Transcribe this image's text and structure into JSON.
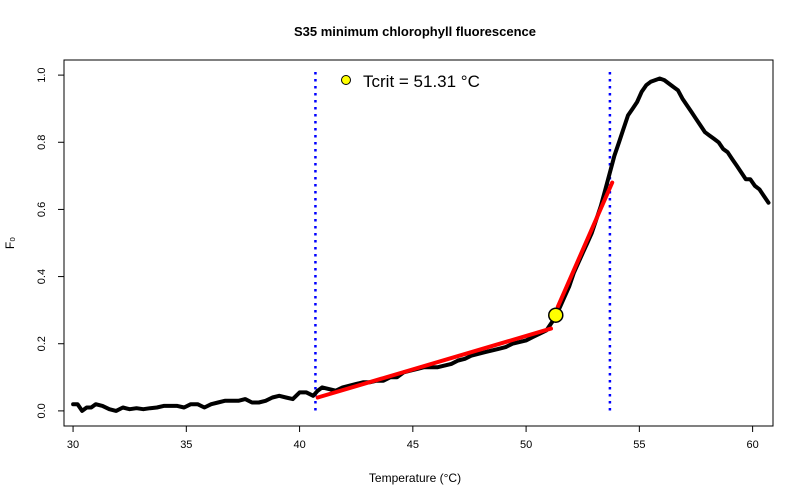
{
  "chart_data": {
    "type": "line",
    "title": "S35 minimum chlorophyll fluorescence",
    "xlabel": "Temperature (°C)",
    "ylabel": "F₀",
    "xlim": [
      29.6,
      60.9
    ],
    "ylim": [
      -0.045,
      1.045
    ],
    "x_ticks": [
      30,
      35,
      40,
      45,
      50,
      55,
      60
    ],
    "y_ticks": [
      0.0,
      0.2,
      0.4,
      0.6,
      0.8,
      1.0
    ],
    "x_tick_labels": [
      "30",
      "35",
      "40",
      "45",
      "50",
      "55",
      "60"
    ],
    "y_tick_labels": [
      "0.0",
      "0.2",
      "0.4",
      "0.6",
      "0.8",
      "1.0"
    ],
    "series": [
      {
        "name": "F0",
        "color": "#000000",
        "x": [
          30.0,
          30.2,
          30.4,
          30.6,
          30.8,
          31.0,
          31.3,
          31.6,
          31.9,
          32.2,
          32.5,
          32.8,
          33.1,
          33.4,
          33.7,
          34.0,
          34.3,
          34.6,
          34.9,
          35.2,
          35.5,
          35.8,
          36.1,
          36.4,
          36.7,
          37.0,
          37.3,
          37.6,
          37.9,
          38.2,
          38.5,
          38.8,
          39.1,
          39.4,
          39.7,
          40.0,
          40.3,
          40.6,
          40.8,
          41.0,
          41.3,
          41.6,
          41.9,
          42.2,
          42.5,
          42.8,
          43.1,
          43.4,
          43.7,
          44.0,
          44.3,
          44.6,
          44.9,
          45.2,
          45.5,
          45.8,
          46.1,
          46.4,
          46.7,
          47.0,
          47.3,
          47.6,
          47.9,
          48.2,
          48.5,
          48.8,
          49.1,
          49.4,
          49.7,
          50.0,
          50.3,
          50.6,
          50.9,
          51.2,
          51.5,
          51.7,
          51.9,
          52.1,
          52.3,
          52.5,
          52.7,
          52.9,
          53.1,
          53.3,
          53.5,
          53.7,
          53.9,
          54.1,
          54.3,
          54.5,
          54.7,
          54.9,
          55.1,
          55.3,
          55.5,
          55.7,
          55.9,
          56.1,
          56.3,
          56.5,
          56.7,
          56.9,
          57.1,
          57.3,
          57.5,
          57.7,
          57.9,
          58.1,
          58.3,
          58.5,
          58.7,
          58.9,
          59.1,
          59.3,
          59.5,
          59.7,
          59.9,
          60.1,
          60.3,
          60.5,
          60.7
        ],
        "y": [
          0.02,
          0.02,
          0.0,
          0.01,
          0.01,
          0.02,
          0.015,
          0.005,
          0.0,
          0.01,
          0.005,
          0.008,
          0.005,
          0.008,
          0.01,
          0.015,
          0.015,
          0.015,
          0.01,
          0.02,
          0.02,
          0.01,
          0.02,
          0.025,
          0.03,
          0.03,
          0.03,
          0.035,
          0.025,
          0.025,
          0.03,
          0.04,
          0.045,
          0.04,
          0.035,
          0.055,
          0.055,
          0.045,
          0.06,
          0.07,
          0.065,
          0.06,
          0.07,
          0.075,
          0.08,
          0.085,
          0.085,
          0.09,
          0.09,
          0.1,
          0.1,
          0.115,
          0.12,
          0.125,
          0.13,
          0.13,
          0.13,
          0.135,
          0.14,
          0.15,
          0.155,
          0.165,
          0.17,
          0.175,
          0.18,
          0.185,
          0.19,
          0.2,
          0.205,
          0.21,
          0.22,
          0.23,
          0.24,
          0.27,
          0.31,
          0.34,
          0.37,
          0.41,
          0.44,
          0.47,
          0.5,
          0.53,
          0.57,
          0.61,
          0.66,
          0.71,
          0.76,
          0.8,
          0.84,
          0.88,
          0.9,
          0.92,
          0.95,
          0.97,
          0.98,
          0.985,
          0.99,
          0.985,
          0.975,
          0.965,
          0.955,
          0.93,
          0.91,
          0.89,
          0.87,
          0.85,
          0.83,
          0.82,
          0.81,
          0.8,
          0.78,
          0.77,
          0.75,
          0.73,
          0.71,
          0.69,
          0.69,
          0.67,
          0.66,
          0.64,
          0.62
        ]
      },
      {
        "name": "fit-low",
        "color": "#ff0000",
        "x": [
          40.8,
          51.1
        ],
        "y": [
          0.04,
          0.245
        ]
      },
      {
        "name": "fit-high",
        "color": "#ff0000",
        "x": [
          51.4,
          53.8
        ],
        "y": [
          0.31,
          0.68
        ]
      }
    ],
    "vlines": [
      {
        "x": 40.7,
        "color": "#0000ff"
      },
      {
        "x": 53.7,
        "color": "#0000ff"
      }
    ],
    "tcrit_point": {
      "x": 51.31,
      "y": 0.285,
      "color": "#ffff00"
    },
    "legend": {
      "text": "Tcrit = 51.31 °C",
      "placement": "top-center",
      "marker_color": "#ffff00"
    }
  }
}
